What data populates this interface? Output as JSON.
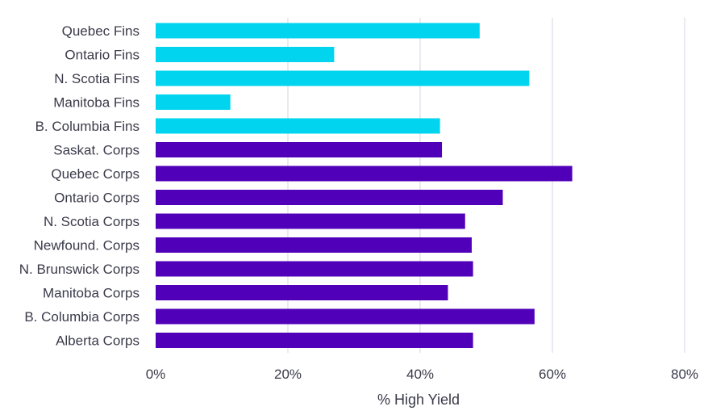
{
  "chart_data": {
    "type": "bar",
    "orientation": "horizontal",
    "categories": [
      "Quebec Fins",
      "Ontario Fins",
      "N. Scotia Fins",
      "Manitoba Fins",
      "B. Columbia Fins",
      "Saskat. Corps",
      "Quebec Corps",
      "Ontario Corps",
      "N. Scotia Corps",
      "Newfound. Corps",
      "N. Brunswick Corps",
      "Manitoba Corps",
      "B. Columbia Corps",
      "Alberta Corps"
    ],
    "values": [
      49,
      27,
      56.5,
      11.3,
      43,
      43.3,
      63,
      52.5,
      46.8,
      47.8,
      48,
      44.2,
      57.3,
      48
    ],
    "colors": [
      "#00d4ee",
      "#00d4ee",
      "#00d4ee",
      "#00d4ee",
      "#00d4ee",
      "#5000b9",
      "#5000b9",
      "#5000b9",
      "#5000b9",
      "#5000b9",
      "#5000b9",
      "#5000b9",
      "#5000b9",
      "#5000b9"
    ],
    "xlabel": "% High Yield",
    "xlim": [
      0,
      80
    ],
    "xticks": [
      0,
      20,
      40,
      60,
      80
    ],
    "xtick_labels": [
      "0%",
      "20%",
      "40%",
      "60%",
      "80%"
    ],
    "grid": "vertical",
    "legend": "none"
  }
}
